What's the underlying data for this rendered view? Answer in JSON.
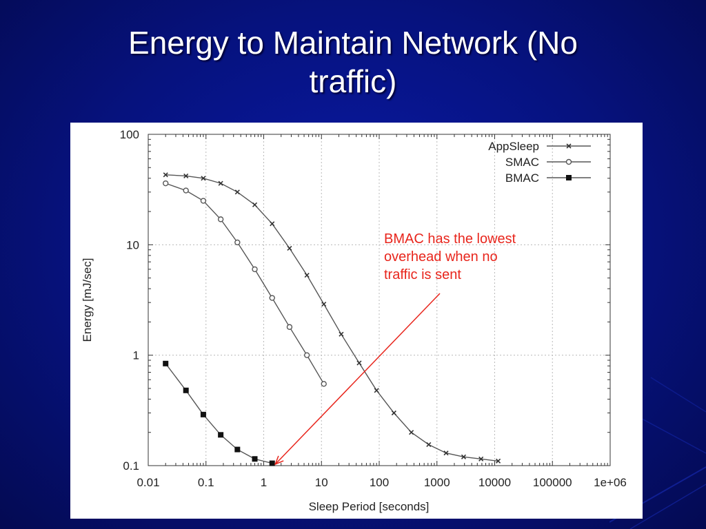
{
  "slide": {
    "title_line1": "Energy to Maintain Network (No",
    "title_line2": "traffic)"
  },
  "annotation": {
    "lines": [
      "BMAC has the lowest",
      "overhead when no",
      "traffic is sent"
    ],
    "color": "#e8251c"
  },
  "colors": {
    "background": "#06127e",
    "title": "#ffffff",
    "series_line": "#555555",
    "arrow": "#e8251c"
  },
  "chart_data": {
    "type": "line",
    "title": "",
    "xlabel": "Sleep Period [seconds]",
    "ylabel": "Energy [mJ/sec]",
    "xscale": "log",
    "yscale": "log",
    "xlim": [
      0.01,
      1000000
    ],
    "ylim": [
      0.1,
      100
    ],
    "xticks": [
      0.01,
      0.1,
      1,
      10,
      100,
      1000,
      10000,
      100000,
      1000000
    ],
    "xtick_labels": [
      "0.01",
      "0.1",
      "1",
      "10",
      "100",
      "1000",
      "10000",
      "100000",
      "1e+06"
    ],
    "yticks": [
      0.1,
      1,
      10,
      100
    ],
    "ytick_labels": [
      "0.1",
      "1",
      "10",
      "100"
    ],
    "grid": true,
    "legend_position": "top-right",
    "series": [
      {
        "name": "AppSleep",
        "marker": "x",
        "x": [
          0.02,
          0.045,
          0.09,
          0.18,
          0.35,
          0.7,
          1.4,
          2.8,
          5.6,
          11,
          22,
          45,
          90,
          180,
          360,
          720,
          1440,
          2900,
          5800,
          11500
        ],
        "y": [
          43,
          42,
          40,
          36,
          30,
          23,
          15.5,
          9.3,
          5.3,
          2.9,
          1.55,
          0.85,
          0.48,
          0.3,
          0.2,
          0.155,
          0.13,
          0.12,
          0.115,
          0.11
        ]
      },
      {
        "name": "SMAC",
        "marker": "circle",
        "x": [
          0.02,
          0.045,
          0.09,
          0.18,
          0.35,
          0.7,
          1.4,
          2.8,
          5.6,
          11
        ],
        "y": [
          36,
          31,
          25,
          17,
          10.5,
          6,
          3.3,
          1.8,
          1.0,
          0.55
        ]
      },
      {
        "name": "BMAC",
        "marker": "square",
        "x": [
          0.02,
          0.045,
          0.09,
          0.18,
          0.35,
          0.7,
          1.4
        ],
        "y": [
          0.84,
          0.48,
          0.29,
          0.19,
          0.14,
          0.115,
          0.105
        ]
      }
    ],
    "arrow_target": {
      "x": 1.5,
      "y": 0.1
    }
  }
}
